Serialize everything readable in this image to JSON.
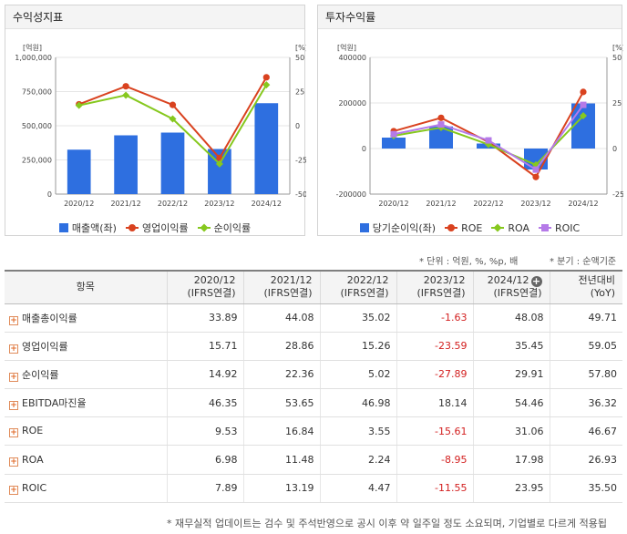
{
  "panels": {
    "left_title": "수익성지표",
    "right_title": "투자수익률"
  },
  "chart_data": [
    {
      "type": "bar+line",
      "title": "수익성지표",
      "y_left_label": "[억원]",
      "y_right_label": "[%]",
      "categories": [
        "2020/12",
        "2021/12",
        "2022/12",
        "2023/12",
        "2024/12"
      ],
      "y_left_ticks": [
        "1,000,000",
        "750,000",
        "500,000",
        "250,000",
        "0"
      ],
      "y_right_ticks": [
        "50",
        "25",
        "0",
        "-25",
        "-50"
      ],
      "y_left_range": [
        0,
        1000000
      ],
      "y_right_range": [
        -50,
        50
      ],
      "bars": {
        "name": "매출액(좌)",
        "color": "#2e6fe0",
        "values": [
          325000,
          430000,
          450000,
          330000,
          665000
        ]
      },
      "lines": [
        {
          "name": "영업이익률",
          "color": "#d9421f",
          "values": [
            15.71,
            28.86,
            15.26,
            -23.59,
            35.45
          ]
        },
        {
          "name": "순이익률",
          "color": "#86c81e",
          "values": [
            14.92,
            22.36,
            5.02,
            -27.89,
            29.91
          ]
        }
      ]
    },
    {
      "type": "bar+line",
      "title": "투자수익률",
      "y_left_label": "[억원]",
      "y_right_label": "[%]",
      "categories": [
        "2020/12",
        "2021/12",
        "2022/12",
        "2023/12",
        "2024/12"
      ],
      "y_left_ticks": [
        "400000",
        "200000",
        "0",
        "-200000"
      ],
      "y_right_ticks": [
        "50",
        "25",
        "0",
        "-25"
      ],
      "y_left_range": [
        -200000,
        400000
      ],
      "y_right_range": [
        -25,
        50
      ],
      "bars": {
        "name": "당기순이익(좌)",
        "color": "#2e6fe0",
        "values": [
          48000,
          97000,
          22000,
          -92000,
          198000
        ]
      },
      "lines": [
        {
          "name": "ROE",
          "color": "#d9421f",
          "marker": "circle",
          "values": [
            9.53,
            16.84,
            3.55,
            -15.61,
            31.06
          ]
        },
        {
          "name": "ROA",
          "color": "#86c81e",
          "marker": "diamond",
          "values": [
            6.98,
            11.48,
            2.24,
            -8.95,
            17.98
          ]
        },
        {
          "name": "ROIC",
          "color": "#b57ae8",
          "marker": "square",
          "values": [
            7.89,
            13.19,
            4.47,
            -11.55,
            23.95
          ]
        }
      ]
    }
  ],
  "notes": {
    "unit": "* 단위 : 억원, %, %p, 배",
    "period": "* 분기 : 순액기준"
  },
  "table": {
    "header_item": "항목",
    "columns": [
      {
        "year": "2020/12",
        "basis": "(IFRS연결)"
      },
      {
        "year": "2021/12",
        "basis": "(IFRS연결)"
      },
      {
        "year": "2022/12",
        "basis": "(IFRS연결)"
      },
      {
        "year": "2023/12",
        "basis": "(IFRS연결)"
      },
      {
        "year": "2024/12",
        "basis": "(IFRS연결)"
      }
    ],
    "yoy_header": "전년대비",
    "yoy_sub": "(YoY)",
    "rows": [
      {
        "label": "매출총이익률",
        "values": [
          "33.89",
          "44.08",
          "35.02",
          "-1.63",
          "48.08"
        ],
        "yoy": "49.71"
      },
      {
        "label": "영업이익률",
        "values": [
          "15.71",
          "28.86",
          "15.26",
          "-23.59",
          "35.45"
        ],
        "yoy": "59.05"
      },
      {
        "label": "순이익률",
        "values": [
          "14.92",
          "22.36",
          "5.02",
          "-27.89",
          "29.91"
        ],
        "yoy": "57.80"
      },
      {
        "label": "EBITDA마진율",
        "values": [
          "46.35",
          "53.65",
          "46.98",
          "18.14",
          "54.46"
        ],
        "yoy": "36.32"
      },
      {
        "label": "ROE",
        "values": [
          "9.53",
          "16.84",
          "3.55",
          "-15.61",
          "31.06"
        ],
        "yoy": "46.67"
      },
      {
        "label": "ROA",
        "values": [
          "6.98",
          "11.48",
          "2.24",
          "-8.95",
          "17.98"
        ],
        "yoy": "26.93"
      },
      {
        "label": "ROIC",
        "values": [
          "7.89",
          "13.19",
          "4.47",
          "-11.55",
          "23.95"
        ],
        "yoy": "35.50"
      }
    ]
  },
  "footnote": "* 재무실적 업데이트는 검수 및 주석반영으로 공시 이후 약 일주일 정도 소요되며, 기업별로 다르게 적용됩"
}
